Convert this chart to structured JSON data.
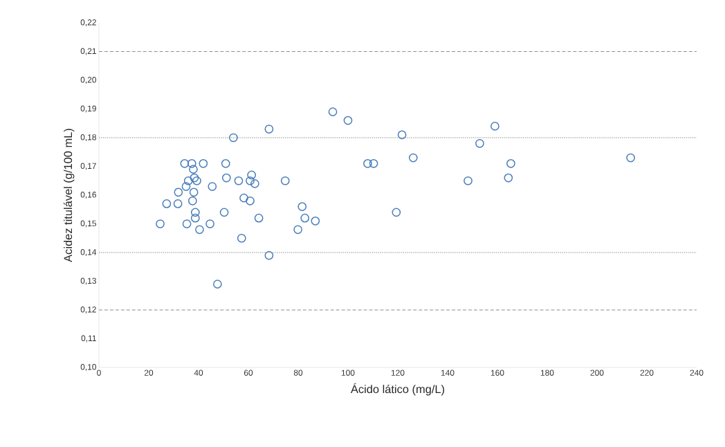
{
  "chart_data": {
    "type": "scatter",
    "xlabel": "Ácido lático (mg/L)",
    "ylabel": "Acidez titulável (g/100 mL)",
    "x": [
      34.4,
      37.3,
      41.9,
      37.9,
      35.9,
      38.3,
      39.3,
      35.0,
      31.9,
      38.1,
      27.2,
      31.7,
      37.6,
      38.7,
      38.7,
      24.6,
      35.3,
      40.4,
      44.6,
      45.5,
      50.3,
      50.9,
      51.2,
      56.1,
      58.2,
      60.7,
      61.3,
      60.7,
      62.6,
      57.3,
      64.2,
      68.3,
      47.6,
      54.0,
      68.3,
      74.8,
      81.6,
      82.7,
      79.9,
      93.9,
      100.0,
      107.9,
      110.3,
      86.9,
      121.7,
      126.2,
      119.4,
      148.2,
      152.9,
      159.0,
      165.4,
      164.4,
      213.5
    ],
    "values": [
      0.171,
      0.171,
      0.171,
      0.169,
      0.165,
      0.166,
      0.165,
      0.163,
      0.161,
      0.161,
      0.157,
      0.157,
      0.158,
      0.154,
      0.152,
      0.15,
      0.15,
      0.148,
      0.15,
      0.163,
      0.154,
      0.171,
      0.166,
      0.165,
      0.159,
      0.158,
      0.167,
      0.165,
      0.164,
      0.145,
      0.152,
      0.139,
      0.129,
      0.18,
      0.183,
      0.165,
      0.156,
      0.152,
      0.148,
      0.189,
      0.186,
      0.171,
      0.171,
      0.151,
      0.181,
      0.173,
      0.154,
      0.165,
      0.178,
      0.184,
      0.171,
      0.166,
      0.173
    ],
    "color": "#4a7ebb",
    "marker": "circle",
    "grid": false,
    "xlim": [
      0,
      240
    ],
    "xticks": [
      0,
      20,
      40,
      60,
      80,
      100,
      120,
      140,
      160,
      180,
      200,
      220,
      240
    ],
    "ylim": [
      0.1,
      0.22
    ],
    "yticks": [
      {
        "value": 0.1,
        "label": "0,10"
      },
      {
        "value": 0.11,
        "label": "0,11"
      },
      {
        "value": 0.12,
        "label": "0,12"
      },
      {
        "value": 0.13,
        "label": "0,13"
      },
      {
        "value": 0.14,
        "label": "0,14"
      },
      {
        "value": 0.15,
        "label": "0,15"
      },
      {
        "value": 0.16,
        "label": "0,16"
      },
      {
        "value": 0.17,
        "label": "0,17"
      },
      {
        "value": 0.18,
        "label": "0,18"
      },
      {
        "value": 0.19,
        "label": "0,19"
      },
      {
        "value": 0.2,
        "label": "0,20"
      },
      {
        "value": 0.21,
        "label": "0,21"
      },
      {
        "value": 0.22,
        "label": "0,22"
      }
    ],
    "ref_lines": [
      {
        "axis": "y",
        "value": 0.21,
        "color": "#808080",
        "line_style": "dashed"
      },
      {
        "axis": "y",
        "value": 0.18,
        "color": "#808080",
        "line_style": "dotted"
      },
      {
        "axis": "y",
        "value": 0.14,
        "color": "#808080",
        "line_style": "dotted"
      },
      {
        "axis": "y",
        "value": 0.12,
        "color": "#808080",
        "line_style": "dashed"
      }
    ]
  }
}
